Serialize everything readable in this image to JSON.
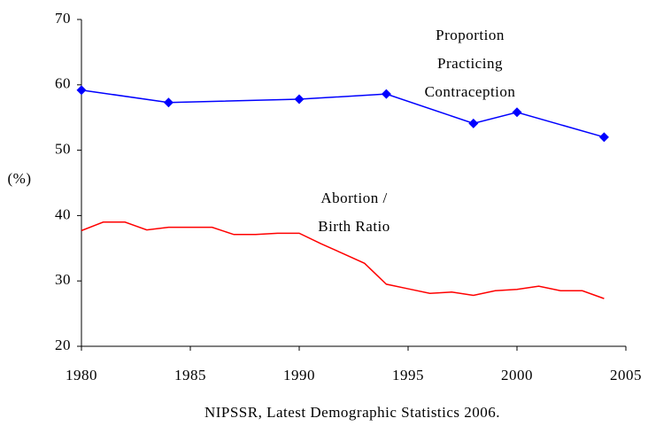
{
  "chart_data": {
    "type": "line",
    "y_label": "(%)",
    "source": "NIPSSR, Latest Demographic Statistics 2006.",
    "annotations": [
      [
        "Proportion",
        "Practicing",
        "Contraception"
      ],
      [
        "Abortion /",
        "Birth Ratio"
      ]
    ],
    "xlim": [
      1980,
      2005
    ],
    "xticks": [
      1980,
      1985,
      1990,
      1995,
      2000,
      2005
    ],
    "ylim": [
      20,
      70
    ],
    "yticks": [
      20,
      30,
      40,
      50,
      60,
      70
    ],
    "grid": false,
    "series": [
      {
        "name": "Proportion Practicing Contraception",
        "color": "#0000ff",
        "marker": "diamond",
        "x": [
          1980,
          1984,
          1990,
          1994,
          1998,
          2000,
          2004
        ],
        "values": [
          59.2,
          57.3,
          57.8,
          58.6,
          54.1,
          55.8,
          52.0
        ]
      },
      {
        "name": "Abortion / Birth Ratio",
        "color": "#ff0000",
        "marker": "none",
        "x": [
          1980,
          1981,
          1982,
          1983,
          1984,
          1985,
          1986,
          1987,
          1988,
          1989,
          1990,
          1991,
          1992,
          1993,
          1994,
          1995,
          1996,
          1997,
          1998,
          1999,
          2000,
          2001,
          2002,
          2003,
          2004
        ],
        "values": [
          37.7,
          39.0,
          39.0,
          37.8,
          38.2,
          38.2,
          38.2,
          37.1,
          37.1,
          37.3,
          37.3,
          35.7,
          34.2,
          32.7,
          29.5,
          28.8,
          28.1,
          28.3,
          27.8,
          28.5,
          28.7,
          29.2,
          28.5,
          28.5,
          27.3
        ]
      }
    ]
  }
}
